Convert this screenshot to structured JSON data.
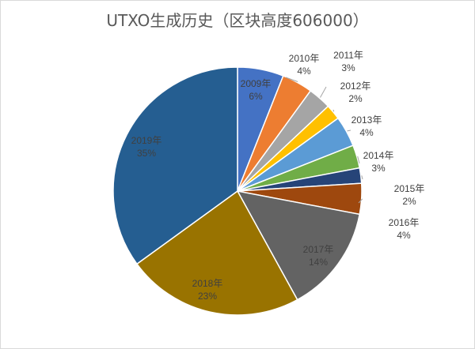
{
  "chart_data": {
    "type": "pie",
    "title": "UTXO生成历史（区块高度606000）",
    "slices": [
      {
        "label": "2009年",
        "value": 6,
        "pct_label": "6%",
        "color": "#4472c4",
        "text_color": "#404040"
      },
      {
        "label": "2010年",
        "value": 4,
        "pct_label": "4%",
        "color": "#ed7d31",
        "text_color": "#404040"
      },
      {
        "label": "2011年",
        "value": 3,
        "pct_label": "3%",
        "color": "#a5a5a5",
        "text_color": "#404040"
      },
      {
        "label": "2012年",
        "value": 2,
        "pct_label": "2%",
        "color": "#ffc000",
        "text_color": "#404040"
      },
      {
        "label": "2013年",
        "value": 4,
        "pct_label": "4%",
        "color": "#5b9bd5",
        "text_color": "#404040"
      },
      {
        "label": "2014年",
        "value": 3,
        "pct_label": "3%",
        "color": "#70ad47",
        "text_color": "#404040"
      },
      {
        "label": "2015年",
        "value": 2,
        "pct_label": "2%",
        "color": "#264478",
        "text_color": "#404040"
      },
      {
        "label": "2016年",
        "value": 4,
        "pct_label": "4%",
        "color": "#9e480e",
        "text_color": "#404040"
      },
      {
        "label": "2017年",
        "value": 14,
        "pct_label": "14%",
        "color": "#636363",
        "text_color": "#404040"
      },
      {
        "label": "2018年",
        "value": 23,
        "pct_label": "23%",
        "color": "#997300",
        "text_color": "#404040"
      },
      {
        "label": "2019年",
        "value": 35,
        "pct_label": "35%",
        "color": "#255e91",
        "text_color": "#404040"
      }
    ],
    "start_angle_deg": 0,
    "direction": "clockwise",
    "legend": "none"
  }
}
